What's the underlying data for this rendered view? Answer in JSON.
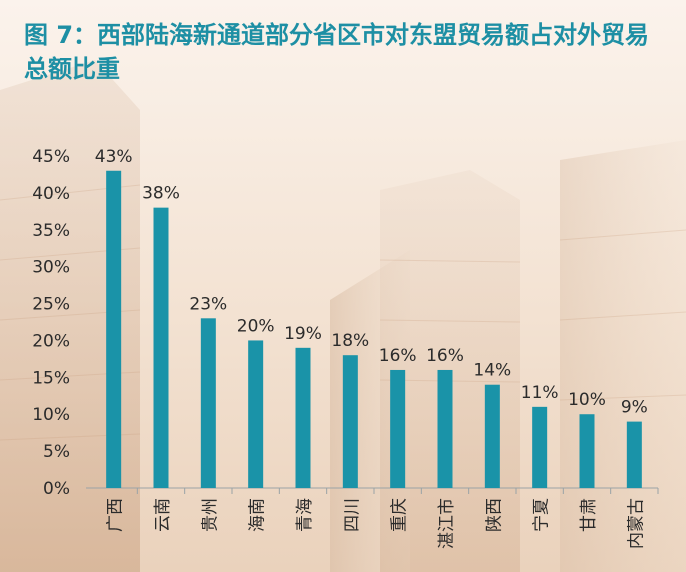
{
  "title": "图 7：西部陆海新通道部分省区市对东盟贸易额占对外贸易总额比重",
  "colors": {
    "bar": "#1a93a8",
    "title": "#1d8fa4",
    "text": "#2b2b2b"
  },
  "chart_data": {
    "type": "bar",
    "categories": [
      "广西",
      "云南",
      "贵州",
      "海南",
      "青海",
      "四川",
      "重庆",
      "湛江市",
      "陕西",
      "宁夏",
      "甘肃",
      "内蒙古"
    ],
    "values": [
      43,
      38,
      23,
      20,
      19,
      18,
      16,
      16,
      14,
      11,
      10,
      9
    ],
    "data_labels": [
      "43%",
      "38%",
      "23%",
      "20%",
      "19%",
      "18%",
      "16%",
      "16%",
      "14%",
      "11%",
      "10%",
      "9%"
    ],
    "yticks": [
      "0%",
      "5%",
      "10%",
      "15%",
      "20%",
      "25%",
      "30%",
      "35%",
      "40%",
      "45%"
    ],
    "ylim": [
      0,
      45
    ],
    "xlabel": "",
    "ylabel": "",
    "grid": false,
    "legend": "none"
  }
}
